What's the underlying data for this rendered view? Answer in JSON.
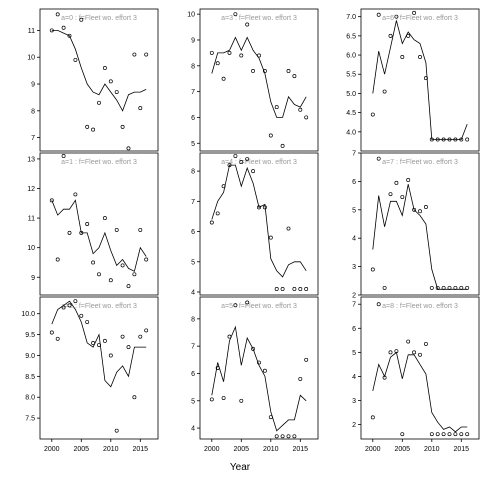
{
  "chart_data": {
    "type": "scatter",
    "xlabel": "Year",
    "xlim": [
      1998,
      2018
    ],
    "x": [
      2000,
      2001,
      2002,
      2003,
      2004,
      2005,
      2006,
      2007,
      2008,
      2009,
      2010,
      2011,
      2012,
      2013,
      2014,
      2015,
      2016
    ],
    "panels": [
      {
        "title": "a=0 : f=Fleet wo. effort 3",
        "ylim": [
          6.5,
          11.8
        ],
        "yticks": [
          7,
          8,
          9,
          10,
          11
        ],
        "line": [
          11.0,
          11.0,
          10.9,
          10.8,
          10.3,
          9.6,
          9.0,
          8.7,
          8.6,
          9.0,
          8.7,
          8.4,
          8.0,
          8.6,
          8.7,
          8.7,
          8.8
        ],
        "points": [
          11.0,
          11.6,
          11.1,
          10.8,
          9.9,
          11.4,
          7.4,
          7.3,
          8.3,
          9.6,
          9.1,
          8.7,
          7.4,
          6.6,
          10.1,
          8.1,
          10.1
        ]
      },
      {
        "title": "a=3 : f=Fleet wo. effort 3",
        "ylim": [
          4.7,
          10.2
        ],
        "yticks": [
          5,
          6,
          7,
          8,
          9,
          10
        ],
        "line": [
          7.7,
          8.5,
          8.5,
          8.6,
          9.1,
          8.6,
          9.1,
          8.6,
          8.3,
          7.7,
          6.6,
          6.0,
          6.0,
          6.8,
          6.5,
          6.4,
          6.8
        ],
        "points": [
          8.5,
          8.1,
          7.5,
          8.5,
          10.0,
          8.4,
          9.6,
          7.8,
          8.4,
          7.8,
          5.3,
          6.4,
          4.9,
          7.8,
          7.6,
          6.3,
          6.0
        ]
      },
      {
        "title": "a=6 : f=Fleet wo. effort 3",
        "ylim": [
          3.5,
          7.2
        ],
        "yticks": [
          4.0,
          4.5,
          5.0,
          5.5,
          6.0,
          6.5,
          7.0
        ],
        "line": [
          5.0,
          6.1,
          5.5,
          6.2,
          6.9,
          6.3,
          6.6,
          6.4,
          6.3,
          5.8,
          3.8,
          3.8,
          3.8,
          3.8,
          3.8,
          3.8,
          4.2
        ],
        "points": [
          4.45,
          7.05,
          5.05,
          6.5,
          7.0,
          5.95,
          6.5,
          7.1,
          5.95,
          5.4,
          3.8,
          3.8,
          3.8,
          3.8,
          3.8,
          3.8,
          3.8
        ]
      },
      {
        "title": "a=1 : f=Fleet wo. effort 3",
        "ylim": [
          8.4,
          13.2
        ],
        "yticks": [
          9,
          10,
          11,
          12,
          13
        ],
        "line": [
          11.6,
          11.1,
          11.3,
          11.3,
          11.6,
          10.5,
          10.5,
          9.8,
          10.0,
          10.5,
          9.9,
          9.4,
          9.6,
          9.3,
          9.2,
          10.0,
          9.7
        ],
        "points": [
          11.6,
          9.6,
          13.1,
          10.5,
          11.8,
          10.5,
          10.8,
          9.5,
          9.1,
          11.0,
          8.9,
          10.6,
          9.4,
          8.7,
          9.1,
          10.6,
          9.6
        ]
      },
      {
        "title": "a=4 : f=Fleet wo. effort 3",
        "ylim": [
          3.9,
          8.6
        ],
        "yticks": [
          4,
          5,
          6,
          7,
          8
        ],
        "line": [
          6.4,
          7.0,
          7.3,
          8.2,
          8.2,
          7.5,
          8.1,
          7.6,
          6.8,
          6.9,
          5.1,
          4.7,
          4.5,
          4.9,
          5.0,
          5.0,
          4.7
        ],
        "points": [
          6.3,
          6.6,
          7.5,
          8.2,
          8.5,
          8.3,
          8.4,
          8.0,
          6.8,
          6.8,
          5.8,
          4.1,
          4.1,
          6.1,
          4.1,
          4.1,
          4.1
        ]
      },
      {
        "title": "a=7 : f=Fleet wo. effort 3",
        "ylim": [
          2.0,
          7.0
        ],
        "yticks": [
          2,
          3,
          4,
          5,
          6,
          7
        ],
        "line": [
          3.6,
          5.5,
          4.4,
          5.3,
          5.3,
          4.8,
          5.9,
          5.0,
          4.8,
          4.5,
          2.9,
          2.2,
          2.2,
          2.2,
          2.2,
          2.2,
          2.2
        ],
        "points": [
          2.9,
          6.8,
          2.25,
          5.55,
          5.95,
          5.45,
          6.05,
          5.0,
          4.95,
          5.1,
          2.25,
          2.25,
          2.25,
          2.25,
          2.25,
          2.25,
          2.25
        ]
      },
      {
        "title": "a=2 : f=Fleet wo. effort 3",
        "ylim": [
          7.0,
          10.4
        ],
        "yticks": [
          7.5,
          8.0,
          8.5,
          9.0,
          9.5,
          10.0
        ],
        "line": [
          9.75,
          10.1,
          10.2,
          10.3,
          10.1,
          9.8,
          9.3,
          9.2,
          9.5,
          8.4,
          8.25,
          8.6,
          8.75,
          8.5,
          9.2,
          9.2,
          9.2
        ],
        "points": [
          9.55,
          9.4,
          10.15,
          10.2,
          10.3,
          9.95,
          9.8,
          9.3,
          9.25,
          9.35,
          9.0,
          7.2,
          9.45,
          9.2,
          8.0,
          9.45,
          9.6
        ]
      },
      {
        "title": "a=5 : f=Fleet wo. effort 3",
        "ylim": [
          3.6,
          8.8
        ],
        "yticks": [
          4,
          5,
          6,
          7,
          8
        ],
        "line": [
          5.2,
          6.4,
          5.7,
          7.2,
          7.7,
          6.3,
          7.3,
          6.9,
          6.3,
          5.9,
          4.6,
          3.9,
          4.1,
          4.3,
          4.3,
          5.2,
          5.0
        ],
        "points": [
          5.05,
          6.2,
          5.1,
          7.35,
          8.5,
          5.0,
          8.6,
          6.9,
          6.4,
          6.1,
          4.4,
          3.7,
          3.7,
          3.7,
          3.7,
          5.8,
          6.5
        ]
      },
      {
        "title": "a=8 : f=Fleet wo. effort 3",
        "ylim": [
          1.4,
          7.3
        ],
        "yticks": [
          2,
          3,
          4,
          5,
          6,
          7
        ],
        "line": [
          3.4,
          4.5,
          4.0,
          4.8,
          5.0,
          3.9,
          4.9,
          4.9,
          4.5,
          4.1,
          2.5,
          2.1,
          1.8,
          1.9,
          1.7,
          1.9,
          1.9
        ],
        "points": [
          2.3,
          7.0,
          3.95,
          5.0,
          5.05,
          1.6,
          5.45,
          5.0,
          4.9,
          5.35,
          1.6,
          1.6,
          1.6,
          1.6,
          1.6,
          1.6,
          1.6
        ]
      }
    ],
    "xticks": [
      2000,
      2005,
      2010,
      2015
    ]
  }
}
